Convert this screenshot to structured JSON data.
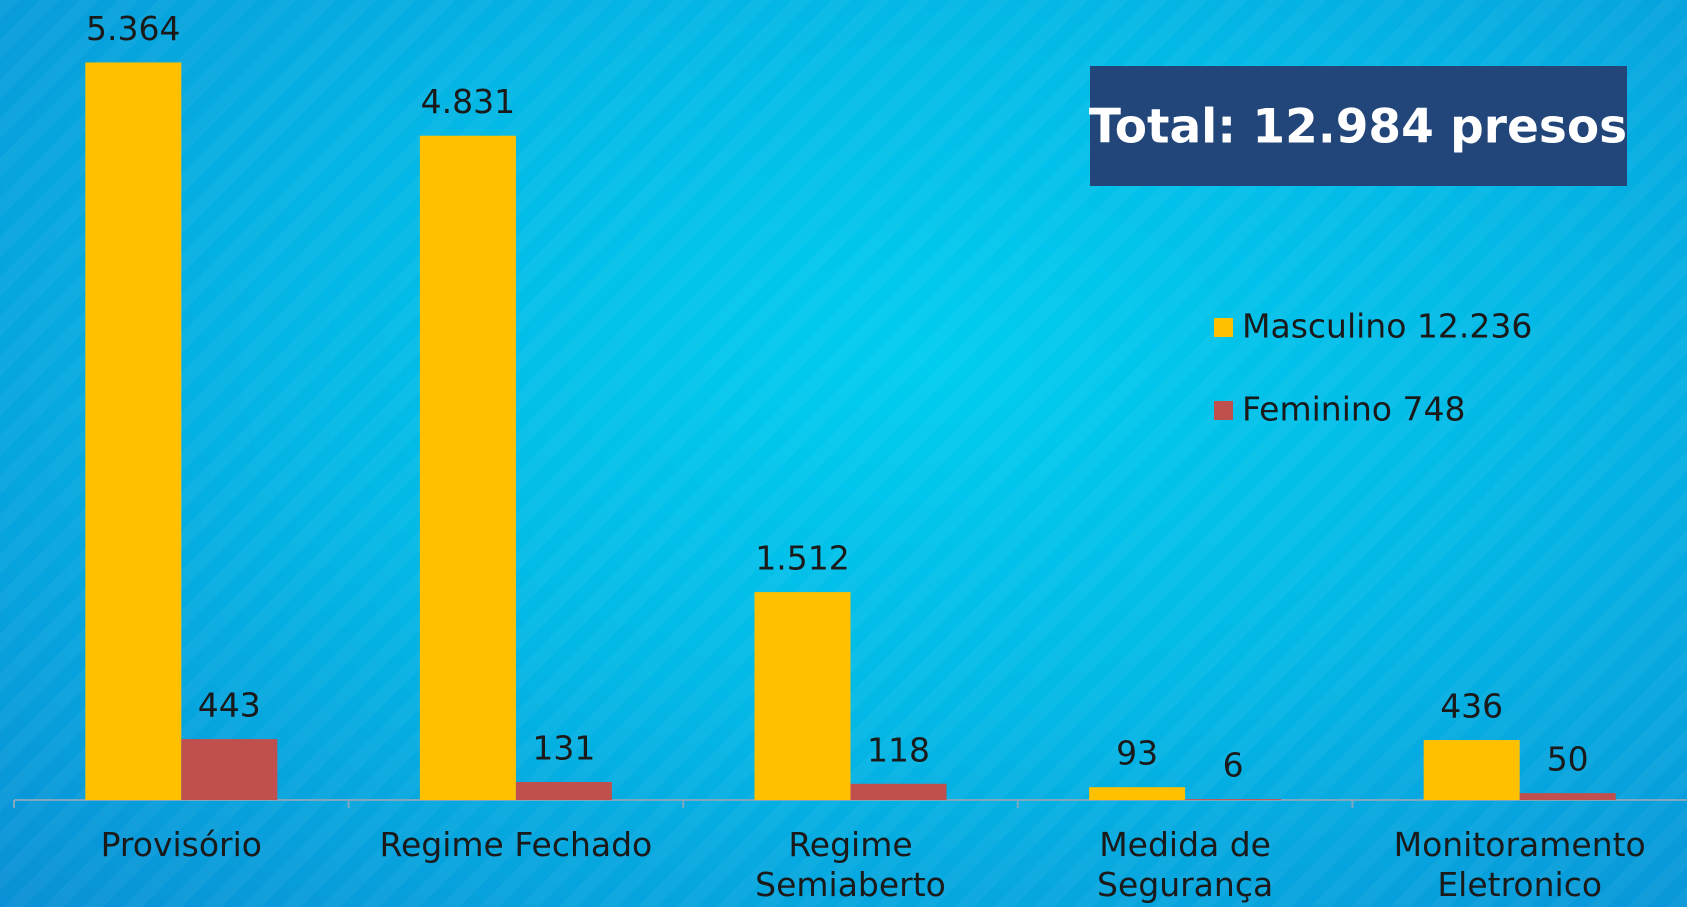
{
  "chart_data": {
    "type": "bar",
    "annotation": "Total: 12.984 presos",
    "categories": [
      "Provisório",
      "Regime Fechado",
      "Regime Semiaberto",
      "Medida de Segurança",
      "Monitoramento Eletronico"
    ],
    "series": [
      {
        "name": "Masculino 12.236",
        "color": "#ffc000",
        "values": [
          5364,
          4831,
          1512,
          93,
          436
        ],
        "value_labels": [
          "5.364",
          "4.831",
          "1.512",
          "93",
          "436"
        ]
      },
      {
        "name": "Feminino 748",
        "color": "#c0504d",
        "values": [
          443,
          131,
          118,
          6,
          50
        ],
        "value_labels": [
          "443",
          "131",
          "118",
          "6",
          "50"
        ]
      }
    ],
    "ylim": [
      0,
      6000
    ],
    "legend": "right"
  }
}
